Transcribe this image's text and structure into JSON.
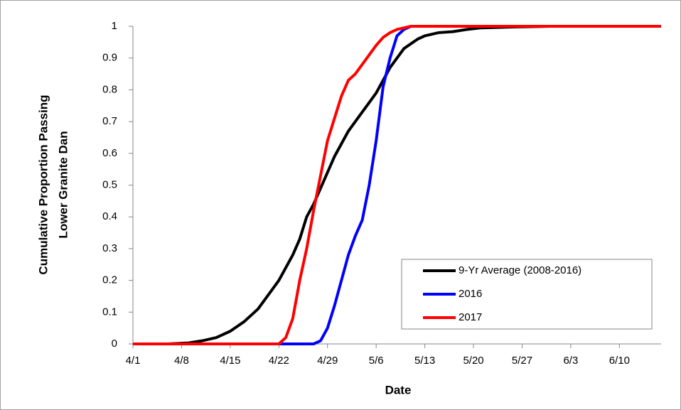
{
  "chart_data": {
    "type": "line",
    "x_label": "Date",
    "y_label": [
      "Cumulative Proportion Passing",
      "Lower Granite Dan"
    ],
    "x": [
      0,
      5,
      8,
      10,
      12,
      14,
      16,
      18,
      20,
      21,
      22,
      23,
      24,
      25,
      26,
      27,
      28,
      29,
      30,
      31,
      32,
      33,
      34,
      35,
      36,
      37,
      38,
      39,
      40,
      41,
      42,
      43,
      44,
      46,
      48,
      50,
      55,
      60,
      70,
      76
    ],
    "series": [
      {
        "name": "9-Yr Average (2008-2016)",
        "color": "#000000",
        "values": [
          0,
          0,
          0.003,
          0.01,
          0.02,
          0.04,
          0.07,
          0.11,
          0.17,
          0.2,
          0.24,
          0.28,
          0.33,
          0.4,
          0.44,
          0.49,
          0.54,
          0.59,
          0.63,
          0.67,
          0.7,
          0.73,
          0.76,
          0.79,
          0.83,
          0.87,
          0.9,
          0.93,
          0.945,
          0.96,
          0.97,
          0.975,
          0.98,
          0.983,
          0.99,
          0.995,
          0.998,
          1,
          1,
          1
        ]
      },
      {
        "name": "2016",
        "color": "#0000ff",
        "values": [
          0,
          0,
          0,
          0,
          0,
          0,
          0,
          0,
          0,
          0,
          0,
          0,
          0,
          0,
          0,
          0.01,
          0.05,
          0.12,
          0.2,
          0.28,
          0.34,
          0.39,
          0.5,
          0.64,
          0.81,
          0.9,
          0.97,
          0.99,
          1,
          1,
          1,
          1,
          1,
          1,
          1,
          1,
          1,
          1,
          1,
          1
        ]
      },
      {
        "name": "2017",
        "color": "#ff0000",
        "values": [
          0,
          0,
          0,
          0,
          0,
          0,
          0,
          0,
          0,
          0,
          0.02,
          0.08,
          0.2,
          0.3,
          0.42,
          0.53,
          0.64,
          0.71,
          0.78,
          0.83,
          0.85,
          0.88,
          0.91,
          0.94,
          0.965,
          0.98,
          0.99,
          0.995,
          1,
          1,
          1,
          1,
          1,
          1,
          1,
          1,
          1,
          1,
          1,
          1
        ]
      }
    ],
    "xlim": [
      0,
      76
    ],
    "xticks": [
      {
        "value": 0,
        "label": "4/1"
      },
      {
        "value": 7,
        "label": "4/8"
      },
      {
        "value": 14,
        "label": "4/15"
      },
      {
        "value": 21,
        "label": "4/22"
      },
      {
        "value": 28,
        "label": "4/29"
      },
      {
        "value": 35,
        "label": "5/6"
      },
      {
        "value": 42,
        "label": "5/13"
      },
      {
        "value": 49,
        "label": "5/20"
      },
      {
        "value": 56,
        "label": "5/27"
      },
      {
        "value": 63,
        "label": "6/3"
      },
      {
        "value": 70,
        "label": "6/10"
      }
    ],
    "ylim": [
      0,
      1
    ],
    "yticks": [
      0,
      0.1,
      0.2,
      0.3,
      0.4,
      0.5,
      0.6,
      0.7,
      0.8,
      0.9,
      1
    ],
    "grid": false,
    "legend": "lower-right"
  }
}
